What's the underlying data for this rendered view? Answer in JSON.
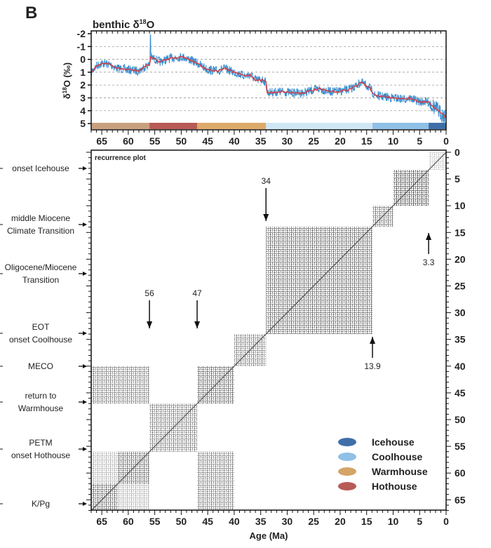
{
  "panel_label": "B",
  "chart_data": [
    {
      "type": "line",
      "title": "benthic δ18O",
      "title_base": "benthic δ",
      "title_sup": "18",
      "title_end": "O",
      "ylabel": "δ18O (‰)",
      "ylabel_base": "δ",
      "ylabel_sup": "18",
      "ylabel_end": "O (‰)",
      "xlim": [
        67,
        0
      ],
      "ylim": [
        -2,
        5
      ],
      "y_inverted": true,
      "x_ticks": [
        "65",
        "60",
        "55",
        "50",
        "45",
        "40",
        "35",
        "30",
        "25",
        "20",
        "15",
        "10",
        "5",
        "0"
      ],
      "y_ticks": [
        "-2",
        "-1",
        "0",
        "1",
        "2",
        "3",
        "4",
        "5"
      ],
      "grid": "horizontal dashed",
      "series": [
        {
          "color": "#3a8fd0",
          "style": "raw data"
        },
        {
          "color": "#d0404a",
          "style": "smoothed",
          "x": [
            67,
            66,
            65,
            63.5,
            62,
            60,
            58,
            57,
            56,
            55.8,
            54,
            52,
            50,
            49,
            47,
            45,
            43,
            42,
            40,
            38,
            37,
            36,
            34.5,
            34,
            33.8,
            31,
            29,
            27,
            25,
            24,
            22,
            20,
            18,
            16,
            14.5,
            13.5,
            12,
            10,
            8,
            7,
            5,
            3.3,
            2,
            1,
            0
          ],
          "y": [
            1.0,
            0.5,
            0.3,
            0.4,
            0.7,
            0.8,
            0.9,
            0.6,
            0.4,
            -0.2,
            0.2,
            -0.1,
            -0.2,
            -0.1,
            0.3,
            0.8,
            0.9,
            0.7,
            1.0,
            1.3,
            1.2,
            1.6,
            1.6,
            1.8,
            2.6,
            2.5,
            2.6,
            2.6,
            2.4,
            2.3,
            2.5,
            2.5,
            2.3,
            1.8,
            2.2,
            2.8,
            2.9,
            3.0,
            3.1,
            3.0,
            3.3,
            3.3,
            3.8,
            4.2,
            4.5
          ]
        }
      ],
      "climate_state_bar": [
        {
          "from": 67,
          "to": 56,
          "state": "Warmhouse",
          "color": "#c9a07e"
        },
        {
          "from": 56,
          "to": 47,
          "state": "Hothouse",
          "color": "#b85a55"
        },
        {
          "from": 47,
          "to": 34,
          "state": "Warmhouse",
          "color": "#ddaa6a"
        },
        {
          "from": 34,
          "to": 13.9,
          "state": "Coolhouse",
          "color": "#cfe6f4"
        },
        {
          "from": 13.9,
          "to": 3.3,
          "state": "Coolhouse",
          "color": "#8fc0e6"
        },
        {
          "from": 3.3,
          "to": 0,
          "state": "Icehouse",
          "color": "#3f6ea8"
        }
      ]
    },
    {
      "type": "heatmap",
      "title": "recurrence plot",
      "xlabel": "Age (Ma)",
      "xlim": [
        67,
        0
      ],
      "ylim": [
        0,
        67
      ],
      "x_ticks": [
        "65",
        "60",
        "55",
        "50",
        "45",
        "40",
        "35",
        "30",
        "25",
        "20",
        "15",
        "10",
        "5",
        "0"
      ],
      "y_ticks": [
        "0",
        "5",
        "10",
        "15",
        "20",
        "25",
        "30",
        "35",
        "40",
        "45",
        "50",
        "55",
        "60",
        "65"
      ],
      "recurrence_blocks": [
        {
          "ages_a": [
            0,
            3.3
          ],
          "ages_b": [
            0,
            3.3
          ],
          "density": 0.25
        },
        {
          "ages_a": [
            3.3,
            10
          ],
          "ages_b": [
            3.3,
            10
          ],
          "density": 0.8
        },
        {
          "ages_a": [
            10,
            13.9
          ],
          "ages_b": [
            10,
            13.9
          ],
          "density": 0.65
        },
        {
          "ages_a": [
            13.9,
            34
          ],
          "ages_b": [
            13.9,
            34
          ],
          "density": 0.7
        },
        {
          "ages_a": [
            34,
            40
          ],
          "ages_b": [
            34,
            40
          ],
          "density": 0.6
        },
        {
          "ages_a": [
            40,
            47
          ],
          "ages_b": [
            40,
            47
          ],
          "density": 0.7
        },
        {
          "ages_a": [
            47,
            56
          ],
          "ages_b": [
            47,
            56
          ],
          "density": 0.6
        },
        {
          "ages_a": [
            56,
            62
          ],
          "ages_b": [
            56,
            62
          ],
          "density": 0.7
        },
        {
          "ages_a": [
            62,
            67
          ],
          "ages_b": [
            62,
            67
          ],
          "density": 0.7
        },
        {
          "ages_a": [
            40,
            47
          ],
          "ages_b": [
            56,
            67
          ],
          "density": 0.6
        },
        {
          "ages_a": [
            56,
            67
          ],
          "ages_b": [
            40,
            47
          ],
          "density": 0.6
        },
        {
          "ages_a": [
            56,
            62
          ],
          "ages_b": [
            62,
            67
          ],
          "density": 0.35
        },
        {
          "ages_a": [
            62,
            67
          ],
          "ages_b": [
            56,
            62
          ],
          "density": 0.35
        }
      ],
      "annotations": [
        {
          "label": "34",
          "age": 34,
          "direction": "down"
        },
        {
          "label": "56",
          "age": 56,
          "direction": "down"
        },
        {
          "label": "47",
          "age": 47,
          "direction": "down"
        },
        {
          "label": "13.9",
          "age": 13.9,
          "direction": "up"
        },
        {
          "label": "3.3",
          "age": 3.3,
          "direction": "up"
        }
      ],
      "events": [
        {
          "lines": [
            "onset Icehouse"
          ],
          "age": 3
        },
        {
          "lines": [
            "middle Miocene",
            "Climate Transition"
          ],
          "age": 13.9
        },
        {
          "lines": [
            "Oligocene/Miocene",
            "Transition"
          ],
          "age": 22
        },
        {
          "lines": [
            "EOT",
            "onset Coolhouse"
          ],
          "age": 33.5
        },
        {
          "lines": [
            "MECO"
          ],
          "age": 40
        },
        {
          "lines": [
            "return to",
            "Warmhouse"
          ],
          "age": 46
        },
        {
          "lines": [
            "PETM",
            "onset Hothouse"
          ],
          "age": 55
        },
        {
          "lines": [
            "K/Pg"
          ],
          "age": 66
        }
      ],
      "legend": {
        "position": "bottom-right",
        "items": [
          {
            "label": "Icehouse",
            "color": "#3f6ea8"
          },
          {
            "label": "Coolhouse",
            "color": "#8fc0e6"
          },
          {
            "label": "Warmhouse",
            "color": "#d4a468"
          },
          {
            "label": "Hothouse",
            "color": "#b85a55"
          }
        ]
      }
    }
  ]
}
